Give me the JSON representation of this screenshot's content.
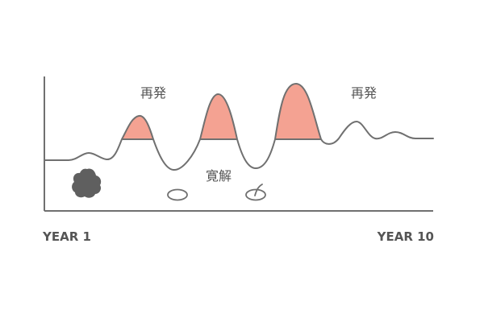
{
  "labels": {
    "relapse_left": "再発",
    "relapse_right": "再発",
    "remission": "寛解",
    "year_start": "YEAR 1",
    "year_end": "YEAR 10"
  },
  "colors": {
    "curve": "#707070",
    "axis": "#707070",
    "relapse_fill": "#f4a292",
    "dark_blob": "#5f5f5f",
    "text": "#555555"
  },
  "icons": [
    "dark-blob-icon",
    "empty-oval-icon",
    "sprouting-oval-icon"
  ]
}
